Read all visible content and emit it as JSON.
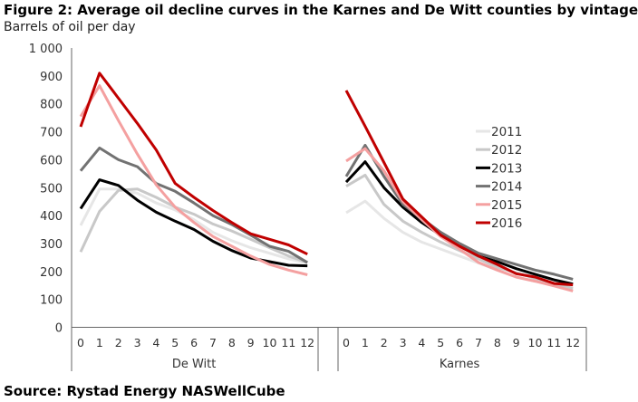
{
  "chart_data": {
    "type": "line",
    "title": "Figure 2: Average oil decline curves in the Karnes and De Witt counties by vintage",
    "ylabel": "Barrels of oil per day",
    "source": "Source: Rystad Energy NASWellCube",
    "ylim": [
      0,
      1000
    ],
    "yticks": [
      "0",
      "100",
      "200",
      "300",
      "400",
      "500",
      "600",
      "700",
      "800",
      "900",
      "1 000"
    ],
    "x": [
      "0",
      "1",
      "2",
      "3",
      "4",
      "5",
      "6",
      "7",
      "8",
      "9",
      "10",
      "11",
      "12"
    ],
    "groups": [
      "De Witt",
      "Karnes"
    ],
    "legend_position": "right",
    "grid": false,
    "series": [
      {
        "name": "2011",
        "color": "#e6e6e6",
        "values": {
          "De Witt": [
            365,
            495,
            495,
            480,
            445,
            420,
            385,
            340,
            310,
            285,
            265,
            245,
            230
          ],
          "Karnes": [
            410,
            452,
            390,
            340,
            305,
            280,
            255,
            230,
            205,
            180,
            165,
            150,
            135
          ]
        }
      },
      {
        "name": "2012",
        "color": "#c8c8c8",
        "values": {
          "De Witt": [
            270,
            415,
            490,
            495,
            465,
            430,
            405,
            370,
            345,
            315,
            285,
            255,
            232
          ],
          "Karnes": [
            505,
            545,
            440,
            380,
            340,
            305,
            275,
            245,
            215,
            195,
            175,
            155,
            140
          ]
        }
      },
      {
        "name": "2013",
        "color": "#000000",
        "values": {
          "De Witt": [
            425,
            528,
            508,
            455,
            412,
            380,
            350,
            308,
            275,
            248,
            235,
            222,
            220
          ],
          "Karnes": [
            520,
            593,
            500,
            430,
            375,
            330,
            290,
            255,
            235,
            210,
            190,
            170,
            155
          ]
        }
      },
      {
        "name": "2014",
        "color": "#727272",
        "values": {
          "De Witt": [
            560,
            642,
            600,
            575,
            515,
            487,
            445,
            400,
            368,
            330,
            290,
            272,
            232
          ],
          "Karnes": [
            540,
            652,
            540,
            440,
            390,
            340,
            300,
            265,
            245,
            225,
            205,
            190,
            172
          ]
        }
      },
      {
        "name": "2015",
        "color": "#f4a0a0",
        "values": {
          "De Witt": [
            755,
            865,
            740,
            620,
            510,
            430,
            375,
            325,
            290,
            255,
            225,
            205,
            188
          ],
          "Karnes": [
            595,
            640,
            560,
            450,
            385,
            325,
            280,
            232,
            205,
            180,
            165,
            148,
            130
          ]
        }
      },
      {
        "name": "2016",
        "color": "#c00000",
        "values": {
          "De Witt": [
            718,
            910,
            820,
            730,
            635,
            515,
            465,
            418,
            375,
            335,
            315,
            295,
            262
          ],
          "Karnes": [
            848,
            720,
            590,
            459,
            395,
            330,
            290,
            255,
            225,
            192,
            180,
            157,
            152
          ]
        }
      }
    ]
  }
}
